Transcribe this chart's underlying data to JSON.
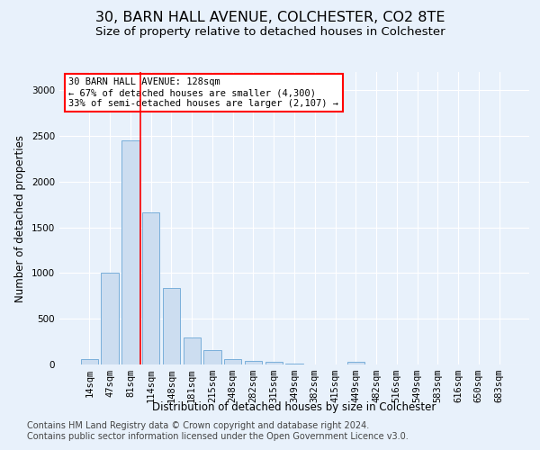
{
  "title1": "30, BARN HALL AVENUE, COLCHESTER, CO2 8TE",
  "title2": "Size of property relative to detached houses in Colchester",
  "xlabel": "Distribution of detached houses by size in Colchester",
  "ylabel": "Number of detached properties",
  "categories": [
    "14sqm",
    "47sqm",
    "81sqm",
    "114sqm",
    "148sqm",
    "181sqm",
    "215sqm",
    "248sqm",
    "282sqm",
    "315sqm",
    "349sqm",
    "382sqm",
    "415sqm",
    "449sqm",
    "482sqm",
    "516sqm",
    "549sqm",
    "583sqm",
    "616sqm",
    "650sqm",
    "683sqm"
  ],
  "values": [
    55,
    1000,
    2450,
    1660,
    840,
    300,
    155,
    60,
    40,
    25,
    10,
    0,
    0,
    30,
    0,
    0,
    0,
    0,
    0,
    0,
    0
  ],
  "bar_color": "#ccddf0",
  "bar_edge_color": "#7aafda",
  "red_line_x": 2.5,
  "annotation_line1": "30 BARN HALL AVENUE: 128sqm",
  "annotation_line2": "← 67% of detached houses are smaller (4,300)",
  "annotation_line3": "33% of semi-detached houses are larger (2,107) →",
  "ylim": [
    0,
    3200
  ],
  "yticks": [
    0,
    500,
    1000,
    1500,
    2000,
    2500,
    3000
  ],
  "footer1": "Contains HM Land Registry data © Crown copyright and database right 2024.",
  "footer2": "Contains public sector information licensed under the Open Government Licence v3.0.",
  "background_color": "#e8f1fb",
  "title1_fontsize": 11.5,
  "title2_fontsize": 9.5,
  "axis_label_fontsize": 8.5,
  "tick_fontsize": 7.5,
  "footer_fontsize": 7
}
